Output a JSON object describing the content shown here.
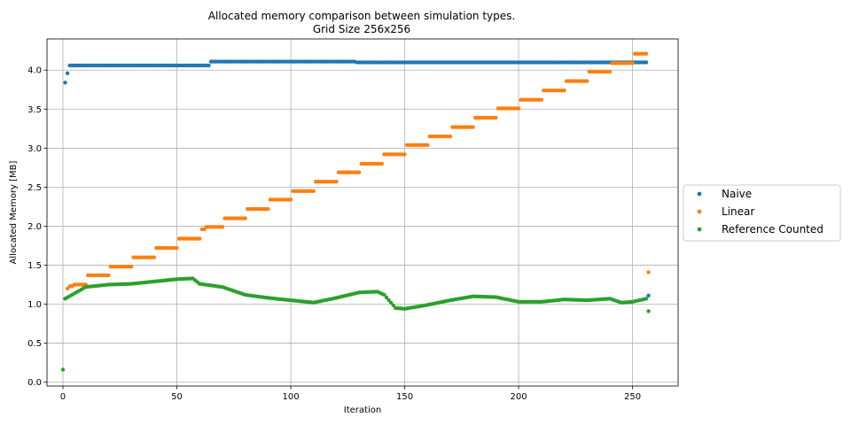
{
  "chart_data": {
    "type": "scatter",
    "title": "Allocated memory comparison between simulation types.",
    "subtitle": "Grid Size 256x256",
    "xlabel": "Iteration",
    "ylabel": "Allocated Memory [MB]",
    "xlim": [
      -7,
      270
    ],
    "ylim": [
      -0.05,
      4.4
    ],
    "xticks": [
      0,
      50,
      100,
      150,
      200,
      250
    ],
    "yticks": [
      0.0,
      0.5,
      1.0,
      1.5,
      2.0,
      2.5,
      3.0,
      3.5,
      4.0
    ],
    "ytick_labels": [
      "0.0",
      "0.5",
      "1.0",
      "1.5",
      "2.0",
      "2.5",
      "3.0",
      "3.5",
      "4.0"
    ],
    "grid": true,
    "legend_placement": "outside-right",
    "series": [
      {
        "name": "Naive",
        "color": "#1f77b4",
        "segments": [
          {
            "x_from": 1,
            "x_to": 1,
            "y": 3.84
          },
          {
            "x_from": 2,
            "x_to": 2,
            "y": 3.96
          },
          {
            "x_from": 3,
            "x_to": 64,
            "y": 4.06
          },
          {
            "x_from": 65,
            "x_to": 128,
            "y": 4.11
          },
          {
            "x_from": 129,
            "x_to": 240,
            "y": 4.1
          },
          {
            "x_from": 241,
            "x_to": 256,
            "y": 4.1
          },
          {
            "x_from": 257,
            "x_to": 257,
            "y": 1.11
          }
        ]
      },
      {
        "name": "Linear",
        "color": "#ff7f0e",
        "segments": [
          {
            "x_from": 1,
            "x_to": 1,
            "y": 1.07
          },
          {
            "x_from": 2,
            "x_to": 2,
            "y": 1.2
          },
          {
            "x_from": 3,
            "x_to": 4,
            "y": 1.23
          },
          {
            "x_from": 5,
            "x_to": 10,
            "y": 1.25
          },
          {
            "x_from": 11,
            "x_to": 20,
            "y": 1.37
          },
          {
            "x_from": 21,
            "x_to": 30,
            "y": 1.48
          },
          {
            "x_from": 31,
            "x_to": 40,
            "y": 1.6
          },
          {
            "x_from": 41,
            "x_to": 50,
            "y": 1.72
          },
          {
            "x_from": 51,
            "x_to": 60,
            "y": 1.84
          },
          {
            "x_from": 61,
            "x_to": 62,
            "y": 1.96
          },
          {
            "x_from": 63,
            "x_to": 70,
            "y": 1.99
          },
          {
            "x_from": 71,
            "x_to": 80,
            "y": 2.1
          },
          {
            "x_from": 81,
            "x_to": 90,
            "y": 2.22
          },
          {
            "x_from": 91,
            "x_to": 100,
            "y": 2.34
          },
          {
            "x_from": 101,
            "x_to": 110,
            "y": 2.45
          },
          {
            "x_from": 111,
            "x_to": 120,
            "y": 2.57
          },
          {
            "x_from": 121,
            "x_to": 130,
            "y": 2.69
          },
          {
            "x_from": 131,
            "x_to": 140,
            "y": 2.8
          },
          {
            "x_from": 141,
            "x_to": 150,
            "y": 2.92
          },
          {
            "x_from": 151,
            "x_to": 160,
            "y": 3.04
          },
          {
            "x_from": 161,
            "x_to": 170,
            "y": 3.15
          },
          {
            "x_from": 171,
            "x_to": 180,
            "y": 3.27
          },
          {
            "x_from": 181,
            "x_to": 190,
            "y": 3.39
          },
          {
            "x_from": 191,
            "x_to": 200,
            "y": 3.51
          },
          {
            "x_from": 201,
            "x_to": 210,
            "y": 3.62
          },
          {
            "x_from": 211,
            "x_to": 220,
            "y": 3.74
          },
          {
            "x_from": 221,
            "x_to": 230,
            "y": 3.86
          },
          {
            "x_from": 231,
            "x_to": 240,
            "y": 3.98
          },
          {
            "x_from": 241,
            "x_to": 250,
            "y": 4.09
          },
          {
            "x_from": 251,
            "x_to": 256,
            "y": 4.21
          },
          {
            "x_from": 257,
            "x_to": 257,
            "y": 1.41
          }
        ]
      },
      {
        "name": "Reference Counted",
        "color": "#2ca02c",
        "points_x": [
          0,
          1,
          10,
          20,
          30,
          40,
          50,
          57,
          60,
          70,
          80,
          90,
          100,
          110,
          120,
          130,
          138,
          141,
          146,
          150,
          160,
          170,
          180,
          190,
          200,
          210,
          220,
          230,
          240,
          245,
          250,
          256,
          257
        ],
        "points_y": [
          0.16,
          1.07,
          1.22,
          1.25,
          1.26,
          1.29,
          1.32,
          1.33,
          1.26,
          1.22,
          1.12,
          1.08,
          1.05,
          1.02,
          1.08,
          1.15,
          1.16,
          1.12,
          0.95,
          0.94,
          0.99,
          1.05,
          1.1,
          1.09,
          1.03,
          1.03,
          1.06,
          1.05,
          1.07,
          1.02,
          1.03,
          1.07,
          0.91
        ],
        "step": 1
      }
    ]
  }
}
